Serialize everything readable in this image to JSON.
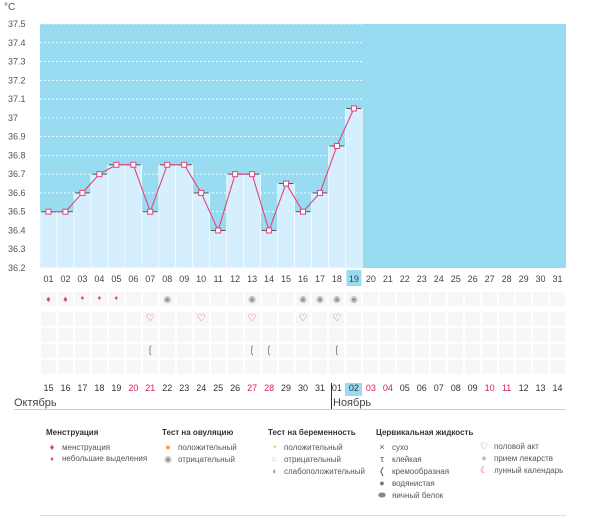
{
  "chart_data": {
    "type": "bar",
    "unit_label": "°C",
    "ylim": [
      36.2,
      37.5
    ],
    "y_ticks": [
      "36.2",
      "36.3",
      "36.4",
      "36.5",
      "36.6",
      "36.7",
      "36.8",
      "36.9",
      "37",
      "37.1",
      "37.2",
      "37.3",
      "37.4",
      "37.5"
    ],
    "cycle_days": [
      "01",
      "02",
      "03",
      "04",
      "05",
      "06",
      "07",
      "08",
      "09",
      "10",
      "11",
      "12",
      "13",
      "14",
      "15",
      "16",
      "17",
      "18",
      "19",
      "20",
      "21",
      "22",
      "23",
      "24",
      "25",
      "26",
      "27",
      "28",
      "29",
      "30",
      "31"
    ],
    "values": [
      36.5,
      36.5,
      36.6,
      36.7,
      36.75,
      36.75,
      36.5,
      36.75,
      36.75,
      36.6,
      36.4,
      36.7,
      36.7,
      36.4,
      36.65,
      36.5,
      36.6,
      36.85,
      37.05
    ],
    "highlight_day_index": 18
  },
  "calendar": {
    "dates": [
      {
        "d": "15",
        "red": false
      },
      {
        "d": "16",
        "red": false
      },
      {
        "d": "17",
        "red": false
      },
      {
        "d": "18",
        "red": false
      },
      {
        "d": "19",
        "red": false
      },
      {
        "d": "20",
        "red": true
      },
      {
        "d": "21",
        "red": true
      },
      {
        "d": "22",
        "red": false
      },
      {
        "d": "23",
        "red": false
      },
      {
        "d": "24",
        "red": false
      },
      {
        "d": "25",
        "red": false
      },
      {
        "d": "26",
        "red": false
      },
      {
        "d": "27",
        "red": true
      },
      {
        "d": "28",
        "red": true
      },
      {
        "d": "29",
        "red": false
      },
      {
        "d": "30",
        "red": false
      },
      {
        "d": "31",
        "red": false
      },
      {
        "d": "01",
        "red": false
      },
      {
        "d": "02",
        "red": false,
        "selected": true
      },
      {
        "d": "03",
        "red": true
      },
      {
        "d": "04",
        "red": true
      },
      {
        "d": "05",
        "red": false
      },
      {
        "d": "06",
        "red": false
      },
      {
        "d": "07",
        "red": false
      },
      {
        "d": "08",
        "red": false
      },
      {
        "d": "09",
        "red": false
      },
      {
        "d": "10",
        "red": true
      },
      {
        "d": "11",
        "red": true
      },
      {
        "d": "12",
        "red": false
      },
      {
        "d": "13",
        "red": false
      },
      {
        "d": "14",
        "red": false
      }
    ],
    "month_october": "Октябрь",
    "month_november": "Ноябрь"
  },
  "markers": {
    "menstruation": [
      1,
      1,
      0.5,
      0.5,
      0.5
    ],
    "ovulation_negative_days": [
      7,
      12
    ],
    "pregnancy_days": [
      15,
      16,
      17,
      18
    ],
    "pregnancy_small_days": [
      12
    ],
    "sex_days": [
      6,
      9,
      12,
      15,
      17
    ],
    "creamy_days": [
      6,
      12,
      13,
      17
    ]
  },
  "legend": {
    "menstruation": {
      "title": "Менструация",
      "items": [
        "менструация",
        "небольшие выделения"
      ]
    },
    "ovulation": {
      "title": "Тест на овуляцию",
      "items": [
        "положительный",
        "отрицательный"
      ]
    },
    "pregnancy": {
      "title": "Тест на беременность",
      "items": [
        "положительный",
        "отрицательный",
        "слабоположительный"
      ]
    },
    "cervical": {
      "title": "Цервикальная жидкость",
      "items": [
        "сухо",
        "клейкая",
        "кремообразная",
        "водянистая",
        "яичный белок"
      ]
    },
    "other": {
      "items": [
        "половой акт",
        "прием лекарств",
        "лунный календарь"
      ]
    }
  },
  "colors": {
    "fill": "#d5efff",
    "area": "#99dcf2",
    "line": "#e0457b",
    "red": "#e01a4f",
    "highlight": "#99dcf2"
  }
}
